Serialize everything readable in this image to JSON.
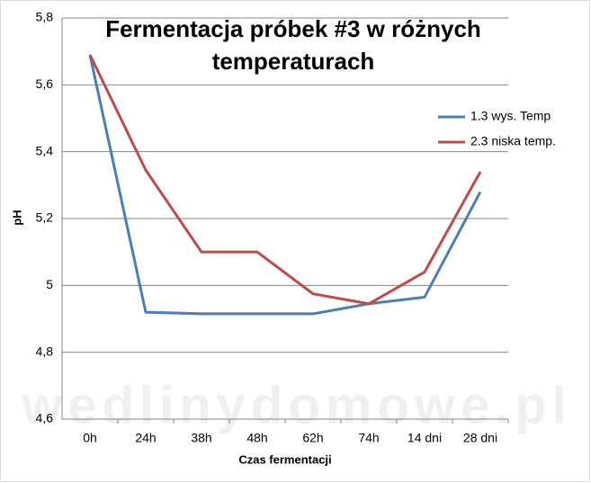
{
  "chart_data": {
    "type": "line",
    "title": "Fermentacja próbek #3 w różnych temperaturach",
    "x_label": "Czas fermentacji",
    "y_label": "pH",
    "watermark": "wedlinydomowe.pl",
    "categories": [
      "0h",
      "24h",
      "38h",
      "48h",
      "62h",
      "74h",
      "14 dni",
      "28 dni"
    ],
    "series": [
      {
        "name": "1.3 wys. Temp",
        "color": "#4a7ebb",
        "values": [
          5.69,
          4.92,
          4.915,
          4.915,
          4.915,
          4.945,
          4.965,
          5.28
        ]
      },
      {
        "name": "2.3 niska temp.",
        "color": "#be4b48",
        "values": [
          5.69,
          5.345,
          5.1,
          5.1,
          4.975,
          4.945,
          5.04,
          5.34
        ]
      }
    ],
    "ylim": [
      4.6,
      5.8
    ],
    "yticks": [
      {
        "value": 4.6,
        "label": "4,6"
      },
      {
        "value": 4.8,
        "label": "4,8"
      },
      5,
      {
        "value": 5.2,
        "label": "5,2"
      },
      {
        "value": 5.4,
        "label": "5,4"
      },
      {
        "value": 5.6,
        "label": "5,6"
      },
      {
        "value": 5.8,
        "label": "5,8"
      }
    ],
    "grid": true,
    "legend": "right"
  }
}
